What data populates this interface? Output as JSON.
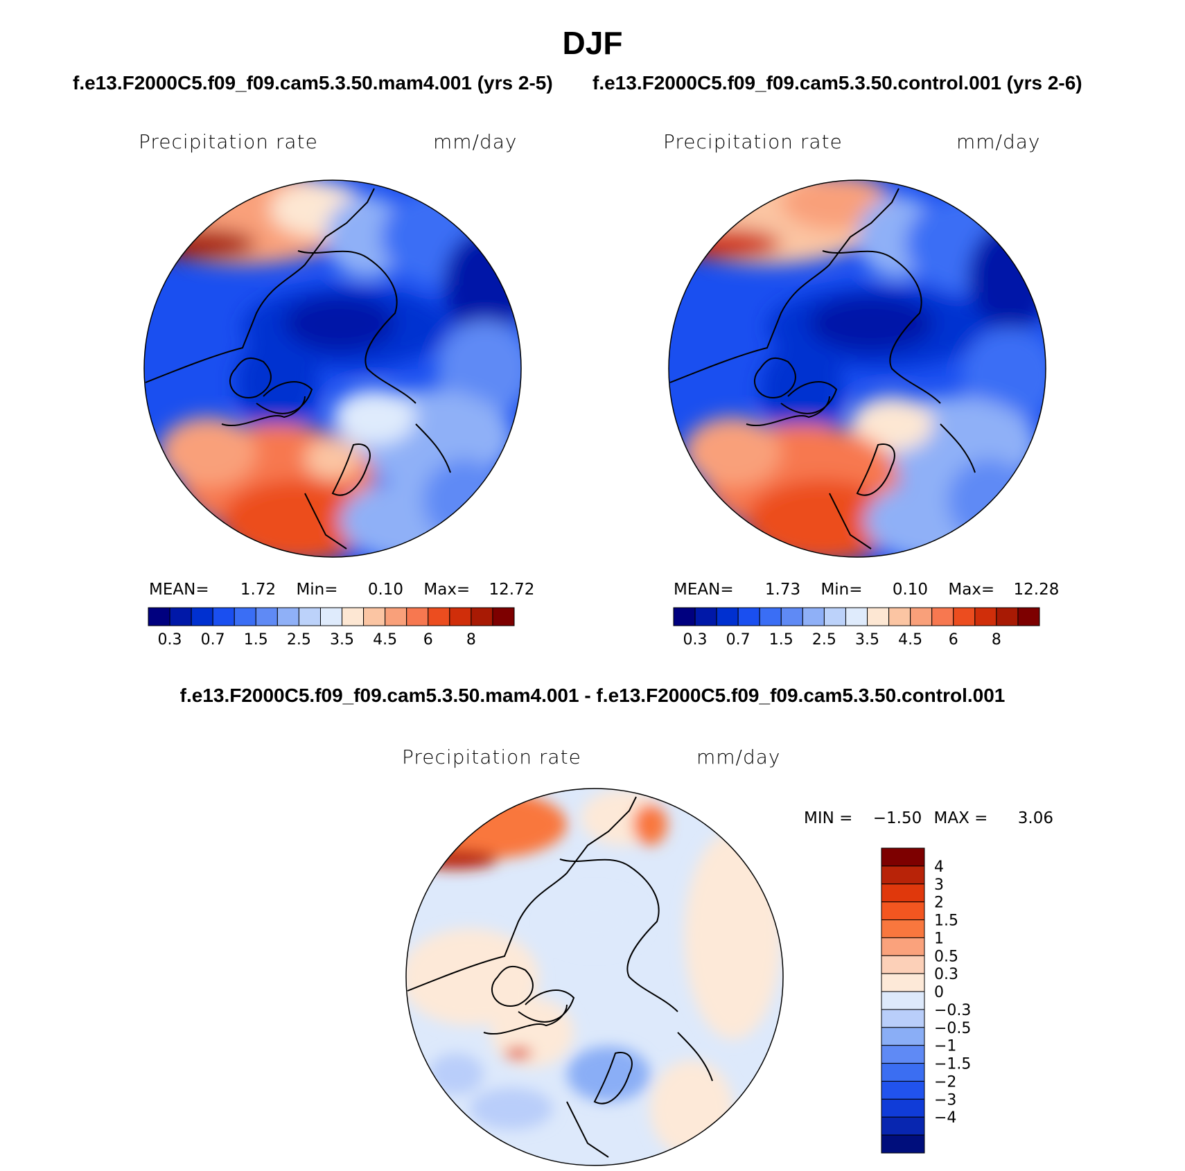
{
  "title": "DJF",
  "panels": [
    {
      "id": "top-left",
      "case_label": "f.e13.F2000C5.f09_f09.cam5.3.50.mam4.001 (yrs 2-5)",
      "variable": "Precipitation rate",
      "units": "mm/day",
      "stats": {
        "mean_label": "MEAN=",
        "mean": "1.72",
        "min_label": "Min=",
        "min": "0.10",
        "max_label": "Max=",
        "max": "12.72"
      }
    },
    {
      "id": "top-right",
      "case_label": "f.e13.F2000C5.f09_f09.cam5.3.50.control.001 (yrs 2-6)",
      "variable": "Precipitation rate",
      "units": "mm/day",
      "stats": {
        "mean_label": "MEAN=",
        "mean": "1.73",
        "min_label": "Min=",
        "min": "0.10",
        "max_label": "Max=",
        "max": "12.28"
      }
    }
  ],
  "diff": {
    "case_label": "f.e13.F2000C5.f09_f09.cam5.3.50.mam4.001 - f.e13.F2000C5.f09_f09.cam5.3.50.control.001",
    "variable": "Precipitation rate",
    "units": "mm/day",
    "stats": {
      "min_label": "MIN =",
      "min": "−1.50",
      "max_label": "MAX =",
      "max": "3.06"
    }
  },
  "abs_colorbar": {
    "colors": [
      "#00007f",
      "#0018a8",
      "#0030d0",
      "#1a4ff0",
      "#3a6ef5",
      "#5f8af5",
      "#8fb0f7",
      "#bcd2fa",
      "#dfebfc",
      "#fde7d3",
      "#fbc5a3",
      "#f9a07a",
      "#f77850",
      "#ec4d1f",
      "#d02e0a",
      "#a81a04",
      "#7d0000"
    ],
    "tick_labels": [
      "0.3",
      "0.7",
      "1.5",
      "2.5",
      "3.5",
      "4.5",
      "6",
      "8"
    ]
  },
  "diff_colorbar": {
    "colors": [
      "#7d0000",
      "#b82308",
      "#e0380c",
      "#f35620",
      "#f9773e",
      "#faa27c",
      "#fcd0b8",
      "#fde9d8",
      "#dde9fb",
      "#b9cefa",
      "#8aaef6",
      "#5f8af5",
      "#3b6ef2",
      "#2153ee",
      "#103cd8",
      "#0826b0",
      "#000e7c"
    ],
    "tick_labels": [
      "4",
      "3",
      "2",
      "1.5",
      "1",
      "0.5",
      "0.3",
      "0",
      "−0.3",
      "−0.5",
      "−1",
      "−1.5",
      "−2",
      "−3",
      "−4"
    ]
  }
}
